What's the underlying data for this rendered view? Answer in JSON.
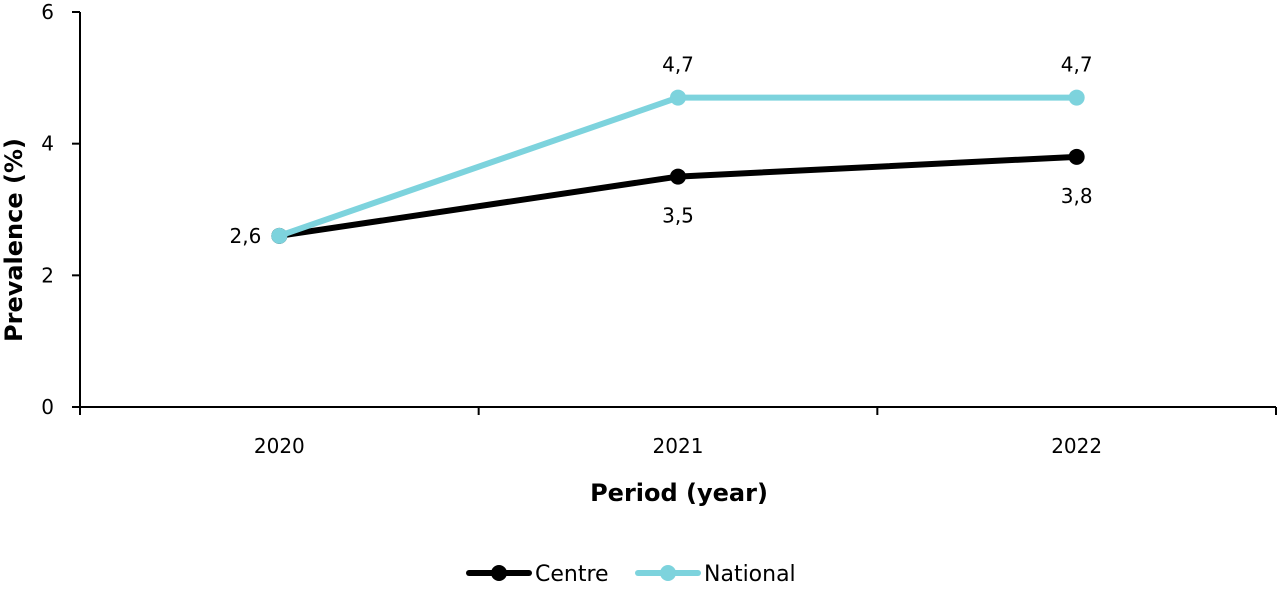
{
  "chart_data": {
    "type": "line",
    "categories": [
      "2020",
      "2021",
      "2022"
    ],
    "series": [
      {
        "name": "Centre",
        "values": [
          2.6,
          3.5,
          3.8
        ],
        "color": "#000000",
        "labels": [
          "2,6",
          "3,5",
          "3,8"
        ],
        "label_position": "below"
      },
      {
        "name": "National",
        "values": [
          2.6,
          4.7,
          4.7
        ],
        "color": "#7dd3dd",
        "labels": [
          "",
          "4,7",
          "4,7"
        ],
        "label_position": "above"
      }
    ],
    "xlabel": "Period (year)",
    "ylabel": "Prevalence (%)",
    "ylim": [
      0,
      6
    ],
    "yticks": [
      0,
      2,
      4,
      6
    ],
    "legend": "bottom",
    "grid": false
  }
}
